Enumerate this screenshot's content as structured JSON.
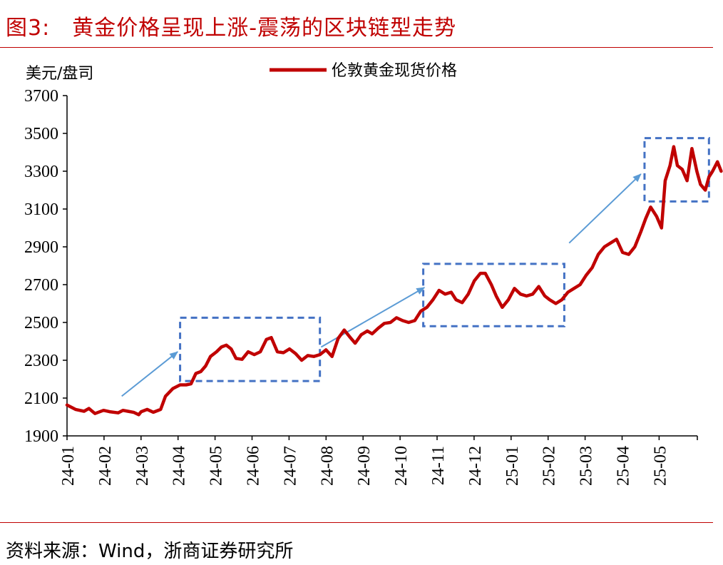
{
  "figure": {
    "title": "图3:　黄金价格呈现上涨-震荡的区块链型走势",
    "source": "资料来源：Wind，浙商证券研究所"
  },
  "chart_data": {
    "type": "line",
    "ylabel": "美元/盘司",
    "ylim": [
      1900,
      3700
    ],
    "yticks": [
      "3700",
      "3500",
      "3300",
      "3100",
      "2900",
      "2700",
      "2500",
      "2300",
      "2100",
      "1900"
    ],
    "xticks": [
      "24-01",
      "24-02",
      "24-03",
      "24-04",
      "24-05",
      "24-06",
      "24-07",
      "24-08",
      "24-09",
      "24-10",
      "24-11",
      "24-12",
      "25-01",
      "25-02",
      "25-03",
      "25-04",
      "25-05"
    ],
    "legend_position": "top-center",
    "series": [
      {
        "name": "伦敦黄金现货价格",
        "color": "#c00000",
        "points": [
          [
            "2024-01-01",
            2063
          ],
          [
            "2024-01-08",
            2040
          ],
          [
            "2024-01-15",
            2030
          ],
          [
            "2024-01-19",
            2045
          ],
          [
            "2024-01-24",
            2018
          ],
          [
            "2024-01-31",
            2035
          ],
          [
            "2024-02-05",
            2028
          ],
          [
            "2024-02-12",
            2022
          ],
          [
            "2024-02-16",
            2035
          ],
          [
            "2024-02-20",
            2030
          ],
          [
            "2024-02-25",
            2024
          ],
          [
            "2024-02-29",
            2012
          ],
          [
            "2024-03-02",
            2028
          ],
          [
            "2024-03-07",
            2040
          ],
          [
            "2024-03-12",
            2025
          ],
          [
            "2024-03-18",
            2040
          ],
          [
            "2024-03-22",
            2110
          ],
          [
            "2024-03-28",
            2150
          ],
          [
            "2024-04-03",
            2170
          ],
          [
            "2024-04-08",
            2170
          ],
          [
            "2024-04-12",
            2175
          ],
          [
            "2024-04-16",
            2230
          ],
          [
            "2024-04-20",
            2240
          ],
          [
            "2024-04-24",
            2270
          ],
          [
            "2024-04-28",
            2320
          ],
          [
            "2024-05-03",
            2345
          ],
          [
            "2024-05-07",
            2370
          ],
          [
            "2024-05-11",
            2380
          ],
          [
            "2024-05-15",
            2360
          ],
          [
            "2024-05-19",
            2310
          ],
          [
            "2024-05-24",
            2305
          ],
          [
            "2024-05-29",
            2345
          ],
          [
            "2024-06-03",
            2330
          ],
          [
            "2024-06-08",
            2345
          ],
          [
            "2024-06-13",
            2410
          ],
          [
            "2024-06-17",
            2420
          ],
          [
            "2024-06-22",
            2345
          ],
          [
            "2024-06-27",
            2340
          ],
          [
            "2024-07-02",
            2360
          ],
          [
            "2024-07-07",
            2335
          ],
          [
            "2024-07-12",
            2300
          ],
          [
            "2024-07-17",
            2325
          ],
          [
            "2024-07-22",
            2320
          ],
          [
            "2024-07-27",
            2330
          ],
          [
            "2024-08-01",
            2355
          ],
          [
            "2024-08-06",
            2320
          ],
          [
            "2024-08-11",
            2415
          ],
          [
            "2024-08-16",
            2460
          ],
          [
            "2024-08-21",
            2420
          ],
          [
            "2024-08-25",
            2390
          ],
          [
            "2024-08-30",
            2435
          ],
          [
            "2024-09-04",
            2455
          ],
          [
            "2024-09-08",
            2440
          ],
          [
            "2024-09-13",
            2470
          ],
          [
            "2024-09-18",
            2495
          ],
          [
            "2024-09-23",
            2500
          ],
          [
            "2024-09-28",
            2525
          ],
          [
            "2024-10-03",
            2510
          ],
          [
            "2024-10-08",
            2500
          ],
          [
            "2024-10-13",
            2510
          ],
          [
            "2024-10-18",
            2560
          ],
          [
            "2024-10-23",
            2580
          ],
          [
            "2024-10-28",
            2620
          ],
          [
            "2024-11-02",
            2670
          ],
          [
            "2024-11-07",
            2650
          ],
          [
            "2024-11-12",
            2660
          ],
          [
            "2024-11-16",
            2620
          ],
          [
            "2024-11-21",
            2605
          ],
          [
            "2024-11-26",
            2650
          ],
          [
            "2024-12-01",
            2720
          ],
          [
            "2024-12-06",
            2760
          ],
          [
            "2024-12-10",
            2760
          ],
          [
            "2024-12-15",
            2700
          ],
          [
            "2024-12-19",
            2640
          ],
          [
            "2024-12-24",
            2580
          ],
          [
            "2024-12-29",
            2620
          ],
          [
            "2025-01-03",
            2680
          ],
          [
            "2025-01-08",
            2650
          ],
          [
            "2025-01-13",
            2640
          ],
          [
            "2025-01-18",
            2650
          ],
          [
            "2025-01-23",
            2690
          ],
          [
            "2025-01-28",
            2640
          ],
          [
            "2025-02-01",
            2620
          ],
          [
            "2025-02-06",
            2600
          ],
          [
            "2025-02-11",
            2620
          ],
          [
            "2025-02-16",
            2660
          ],
          [
            "2025-02-21",
            2680
          ],
          [
            "2025-02-26",
            2700
          ],
          [
            "2025-03-03",
            2750
          ],
          [
            "2025-03-08",
            2790
          ],
          [
            "2025-03-13",
            2860
          ],
          [
            "2025-03-18",
            2900
          ],
          [
            "2025-03-23",
            2920
          ],
          [
            "2025-03-28",
            2940
          ],
          [
            "2025-04-02",
            2870
          ],
          [
            "2025-04-07",
            2860
          ],
          [
            "2025-04-12",
            2900
          ],
          [
            "2025-04-17",
            2980
          ],
          [
            "2025-04-21",
            3050
          ],
          [
            "2025-04-25",
            3110
          ],
          [
            "2025-04-30",
            3060
          ],
          [
            "2025-05-04",
            3000
          ],
          [
            "2025-05-07",
            3250
          ],
          [
            "2025-05-11",
            3330
          ],
          [
            "2025-05-14",
            3430
          ],
          [
            "2025-05-17",
            3330
          ],
          [
            "2025-05-21",
            3310
          ],
          [
            "2025-05-25",
            3250
          ],
          [
            "2025-05-29",
            3420
          ],
          [
            "2025-06-02",
            3300
          ],
          [
            "2025-06-05",
            3230
          ],
          [
            "2025-06-09",
            3200
          ],
          [
            "2025-06-12",
            3270
          ],
          [
            "2025-06-15",
            3300
          ],
          [
            "2025-06-19",
            3350
          ],
          [
            "2025-06-22",
            3300
          ]
        ]
      }
    ],
    "annotations": [
      {
        "type": "dashed-box",
        "color": "#4472c4",
        "x0": "2024-04-03",
        "x1": "2024-07-27",
        "y0": 2190,
        "y1": 2525
      },
      {
        "type": "dashed-box",
        "color": "#4472c4",
        "x0": "2024-10-20",
        "x1": "2025-02-13",
        "y0": 2480,
        "y1": 2810
      },
      {
        "type": "dashed-box",
        "color": "#4472c4",
        "x0": "2025-04-20",
        "x1": "2025-06-12",
        "y0": 3140,
        "y1": 3475
      },
      {
        "type": "arrow",
        "color": "#5b9bd5",
        "from": [
          "2024-02-15",
          2110
        ],
        "to": [
          "2024-04-01",
          2345
        ]
      },
      {
        "type": "arrow",
        "color": "#5b9bd5",
        "from": [
          "2024-07-28",
          2370
        ],
        "to": [
          "2024-10-21",
          2685
        ]
      },
      {
        "type": "arrow",
        "color": "#5b9bd5",
        "from": [
          "2025-02-17",
          2920
        ],
        "to": [
          "2025-04-17",
          3285
        ]
      }
    ]
  }
}
